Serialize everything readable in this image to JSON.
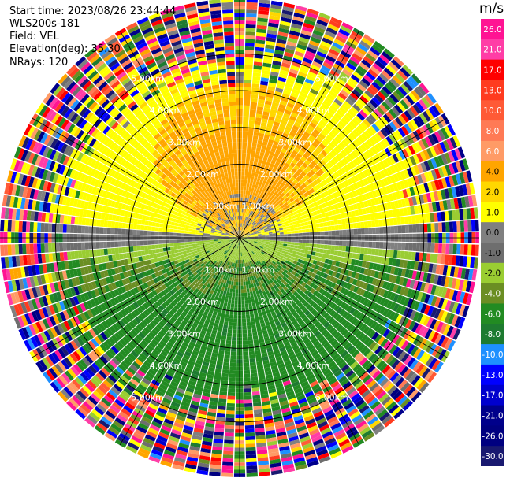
{
  "header": {
    "start_time": "Start time: 2023/08/26 23:44:44",
    "instrument": "WLS200s-181",
    "field": "Field: VEL",
    "elevation": "Elevation(deg): 35.30",
    "nrays": "NRays: 120"
  },
  "range_rings": {
    "label_values": [
      "1.00km",
      "2.00km",
      "3.00km",
      "4.00km",
      "5.00km"
    ]
  },
  "colorbar": {
    "unit": "m/s",
    "ticks": [
      "26.0",
      "21.0",
      "17.0",
      "13.0",
      "10.0",
      "8.0",
      "6.0",
      "4.0",
      "2.0",
      "1.0",
      "0.0",
      "-1.0",
      "-2.0",
      "-4.0",
      "-6.0",
      "-8.0",
      "-10.0",
      "-13.0",
      "-17.0",
      "-21.0",
      "-26.0",
      "-30.0"
    ],
    "colors": [
      "#ff1493",
      "#ff3da6",
      "#ff0000",
      "#ff3b1f",
      "#ff5a36",
      "#ff7a55",
      "#ff9b66",
      "#ffa500",
      "#ffd700",
      "#ffff00",
      "#808080",
      "#6e6e6e",
      "#9acd32",
      "#6b8e23",
      "#228b22",
      "#1e7b30",
      "#1e90ff",
      "#0000ff",
      "#0000cd",
      "#00008b",
      "#000080",
      "#191970"
    ]
  },
  "map_data": {
    "type": "ppi_velocity",
    "rays": 120,
    "range_gates": 65,
    "max_range_km": 6.5
  }
}
